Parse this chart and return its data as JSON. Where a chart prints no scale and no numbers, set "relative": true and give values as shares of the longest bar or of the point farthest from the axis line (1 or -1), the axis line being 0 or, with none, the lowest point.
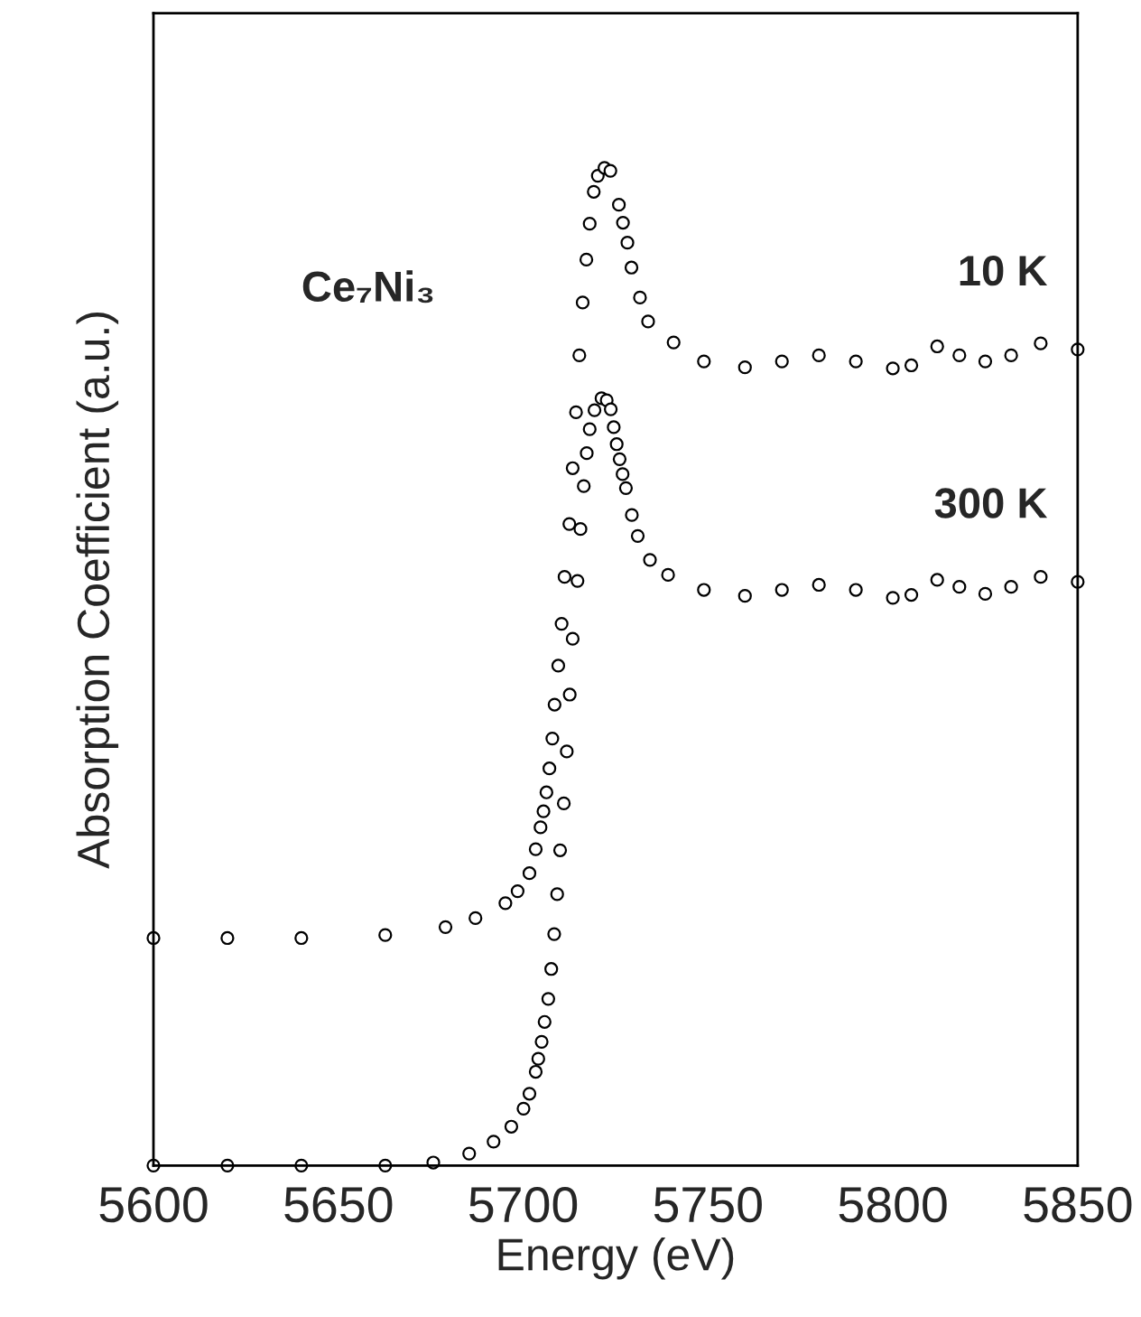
{
  "chart_data": {
    "type": "scatter",
    "relative": true,
    "xlabel": "Energy (eV)",
    "ylabel": "Absorption Coefficient (a.u.)",
    "xlim": [
      5600,
      5850
    ],
    "xticks": [
      5600,
      5650,
      5700,
      5750,
      5800,
      5850
    ],
    "marker": "circle",
    "grid": false,
    "legend": false,
    "annotations": [
      "Ce₇Ni₃"
    ],
    "series": [
      {
        "name": "10 K",
        "color": "#000000",
        "x": [
          5600,
          5620,
          5640,
          5662.7,
          5679,
          5687.1,
          5695.2,
          5698.5,
          5701.7,
          5703.4,
          5704.7,
          5705.5,
          5706.3,
          5707.1,
          5707.9,
          5708.5,
          5709.5,
          5710.4,
          5711.2,
          5712.5,
          5713.4,
          5714.3,
          5715.2,
          5716.1,
          5717.1,
          5718,
          5719.1,
          5720.2,
          5722,
          5723.6,
          5725.9,
          5727,
          5728.2,
          5729.3,
          5731.6,
          5733.8,
          5740.7,
          5748.9,
          5760,
          5770,
          5780,
          5790,
          5800,
          5805,
          5812,
          5818,
          5825,
          5832,
          5840,
          5850
        ],
        "values": [
          0.228,
          0.228,
          0.228,
          0.231,
          0.239,
          0.248,
          0.263,
          0.275,
          0.293,
          0.317,
          0.339,
          0.355,
          0.374,
          0.398,
          0.428,
          0.462,
          0.501,
          0.543,
          0.59,
          0.643,
          0.699,
          0.755,
          0.812,
          0.865,
          0.908,
          0.944,
          0.976,
          0.992,
          1.0,
          0.997,
          0.963,
          0.945,
          0.925,
          0.9,
          0.87,
          0.846,
          0.825,
          0.806,
          0.8,
          0.806,
          0.812,
          0.806,
          0.799,
          0.802,
          0.821,
          0.812,
          0.806,
          0.812,
          0.824,
          0.818
        ]
      },
      {
        "name": "300 K",
        "color": "#000000",
        "x": [
          5600,
          5620,
          5640,
          5662.7,
          5675.7,
          5685.4,
          5692,
          5696.8,
          5700.1,
          5701.7,
          5703.4,
          5704.1,
          5705,
          5705.8,
          5706.8,
          5707.6,
          5708.4,
          5709.2,
          5710,
          5711,
          5711.8,
          5712.6,
          5713.4,
          5714.7,
          5715.5,
          5716.4,
          5717.2,
          5718,
          5719.3,
          5721.2,
          5722.6,
          5723.7,
          5724.5,
          5725.3,
          5726.1,
          5726.9,
          5727.8,
          5729.4,
          5731,
          5734.3,
          5739.2,
          5748.9,
          5760,
          5770,
          5780,
          5790,
          5800,
          5805,
          5812,
          5818,
          5825,
          5832,
          5840,
          5850
        ],
        "values": [
          0,
          0,
          0,
          0,
          0.003,
          0.012,
          0.024,
          0.039,
          0.057,
          0.072,
          0.094,
          0.107,
          0.124,
          0.144,
          0.167,
          0.197,
          0.232,
          0.272,
          0.316,
          0.363,
          0.415,
          0.472,
          0.528,
          0.586,
          0.638,
          0.681,
          0.714,
          0.738,
          0.757,
          0.769,
          0.767,
          0.758,
          0.74,
          0.723,
          0.708,
          0.693,
          0.679,
          0.652,
          0.631,
          0.607,
          0.592,
          0.577,
          0.571,
          0.577,
          0.582,
          0.577,
          0.569,
          0.572,
          0.587,
          0.58,
          0.573,
          0.58,
          0.59,
          0.585
        ]
      }
    ]
  }
}
